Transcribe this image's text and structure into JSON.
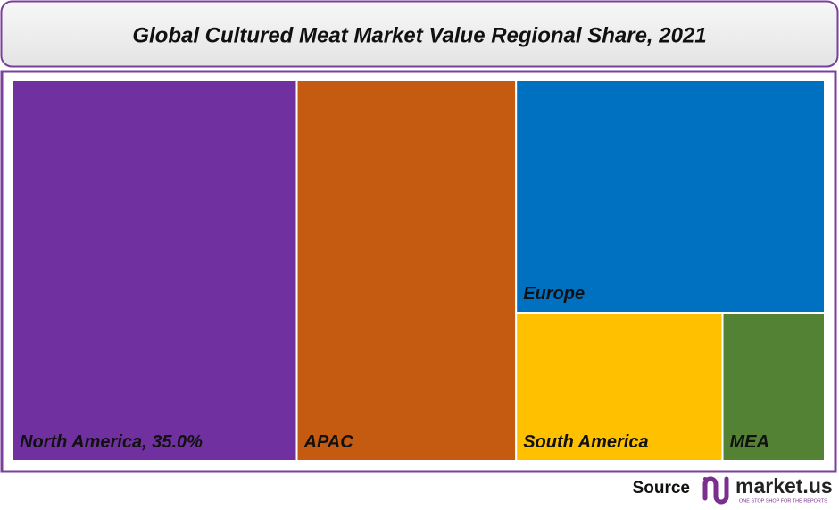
{
  "chart_data": {
    "type": "treemap",
    "title": "Global Cultured Meat Market Value Regional Share, 2021",
    "categories": [
      "North America",
      "APAC",
      "Europe",
      "South America",
      "MEA"
    ],
    "values": [
      35.0,
      27.0,
      23.2,
      9.9,
      4.9
    ],
    "value_labels": [
      "35.0%",
      null,
      null,
      null,
      null
    ],
    "colors": [
      "#7030a0",
      "#c55a11",
      "#0070c0",
      "#ffc000",
      "#548235"
    ]
  },
  "footer": {
    "source": "Source",
    "logo": "market.us",
    "tagline": "ONE STOP SHOP FOR THE REPORTS"
  }
}
